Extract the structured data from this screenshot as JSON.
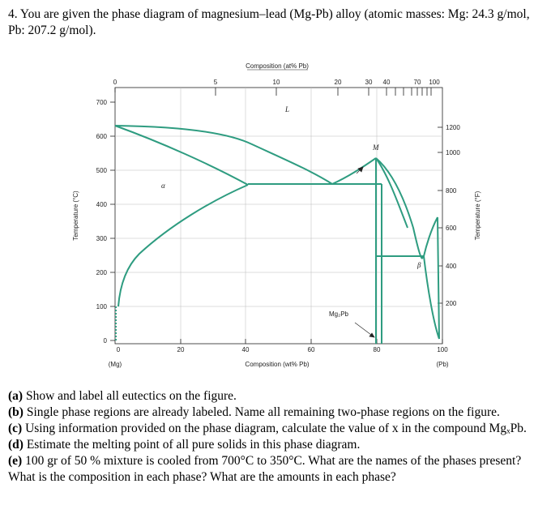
{
  "problem": {
    "intro": "4. You are given the phase diagram of magnesium–lead (Mg-Pb) alloy (atomic masses: Mg: 24.3 g/mol, Pb: 207.2 g/mol)."
  },
  "figure": {
    "top_axis_title": "Composition (at% Pb)",
    "top_ticks": [
      "0",
      "5",
      "10",
      "20",
      "30",
      "40",
      "70",
      "100"
    ],
    "bottom_axis_title": "Composition (wt% Pb)",
    "bottom_ticks": [
      "0",
      "20",
      "40",
      "60",
      "80",
      "100"
    ],
    "bottom_end_labels": [
      "(Mg)",
      "(Pb)"
    ],
    "left_axis_title": "Temperature (°C)",
    "left_ticks": [
      "0",
      "100",
      "200",
      "300",
      "400",
      "500",
      "600",
      "700"
    ],
    "right_axis_title": "Temperature (°F)",
    "right_ticks": [
      "200",
      "400",
      "600",
      "800",
      "1000",
      "1200"
    ],
    "labels": {
      "liquid": "L",
      "alpha": "α",
      "beta": "β",
      "M": "M",
      "compound": "Mg₂Pb"
    },
    "curve_color": "#2e9c80"
  },
  "questions": [
    {
      "tag": "(a)",
      "text": "Show and label all eutectics on the figure."
    },
    {
      "tag": "(b)",
      "text": "Single phase regions are already labeled. Name all remaining two-phase regions on the figure."
    },
    {
      "tag": "(c)",
      "text": "Using information provided on the phase diagram, calculate the value of x in the compound MgₓPb."
    },
    {
      "tag": "(d)",
      "text": "Estimate the melting point of all pure solids in this phase diagram."
    },
    {
      "tag": "(e)",
      "text": "100 gr of 50 % mixture is cooled from 700°C to 350°C. What are the names of the phases present? What is the composition in each phase? What are the amounts in each phase?"
    }
  ]
}
